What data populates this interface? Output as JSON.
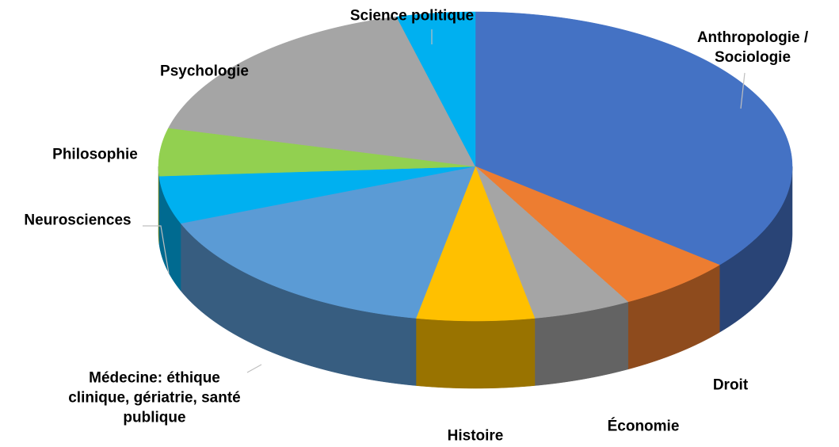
{
  "chart_data": {
    "type": "pie3d",
    "categories": [
      "Anthropologie / Sociologie",
      "Droit",
      "Économie",
      "Histoire",
      "Médecine: éthique clinique, gériatrie, santé publique",
      "Neurosciences",
      "Philosophie",
      "Psychologie",
      "Science politique"
    ],
    "values": [
      36,
      6,
      5,
      6,
      16,
      5,
      5,
      17,
      4
    ],
    "colors": [
      "#4472c4",
      "#ed7d31",
      "#a5a5a5",
      "#ffc000",
      "#5b9bd5",
      "#00b0f0",
      "#92d050",
      "#a5a5a5",
      "#00b0f0"
    ]
  }
}
